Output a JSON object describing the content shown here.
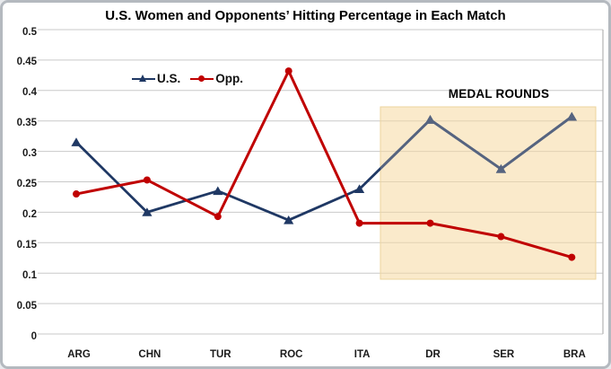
{
  "title": "U.S. Women and Opponents’ Hitting Percentage in Each Match",
  "chart_data": {
    "type": "line",
    "categories": [
      "ARG",
      "CHN",
      "TUR",
      "ROC",
      "ITA",
      "DR",
      "SER",
      "BRA"
    ],
    "series": [
      {
        "name": "U.S.",
        "marker": "triangle",
        "color": "#1F3864",
        "color_in_highlight": "#566480",
        "values": [
          0.315,
          0.2,
          0.235,
          0.187,
          0.238,
          0.352,
          0.271,
          0.357
        ]
      },
      {
        "name": "Opp.",
        "marker": "circle",
        "color": "#C00000",
        "values": [
          0.23,
          0.253,
          0.193,
          0.432,
          0.182,
          0.182,
          0.16,
          0.126
        ]
      }
    ],
    "title": "U.S. Women and Opponents’ Hitting Percentage in Each Match",
    "xlabel": "",
    "ylabel": "",
    "ylim": [
      0,
      0.5
    ],
    "ytick_step": 0.05,
    "yticks": [
      "0.5",
      "0.45",
      "0.4",
      "0.35",
      "0.3",
      "0.25",
      "0.2",
      "0.15",
      "0.1",
      "0.05",
      "0"
    ],
    "grid": true,
    "gridline_color": "#c9c9c9",
    "legend_position": "inside-top-left",
    "highlight_region": {
      "label": "MEDAL ROUNDS",
      "from_category": "DR",
      "to_category": "BRA",
      "color": "#F5D9A0"
    }
  }
}
